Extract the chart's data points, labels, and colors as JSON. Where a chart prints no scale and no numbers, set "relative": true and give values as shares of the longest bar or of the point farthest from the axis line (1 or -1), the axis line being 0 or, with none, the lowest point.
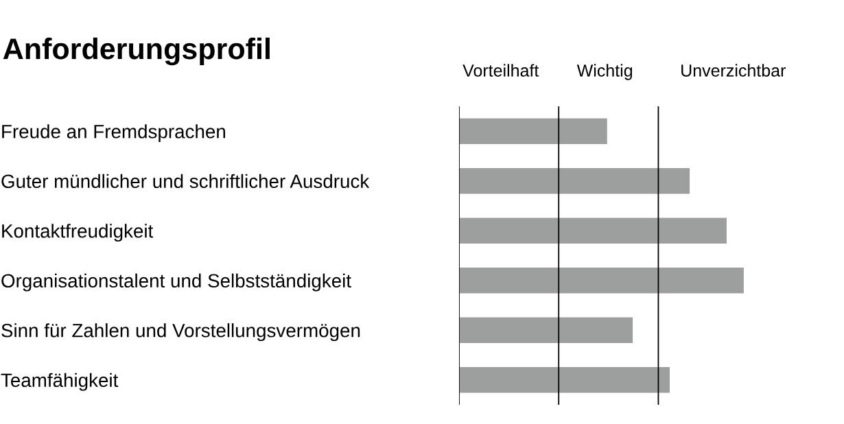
{
  "chart_data": {
    "type": "bar",
    "orientation": "horizontal",
    "relative": true,
    "title": "Anforderungsprofil",
    "categories": [
      "Freude an Fremdsprachen",
      "Guter mündlicher und schriftlicher Ausdruck",
      "Kontaktfreudigkeit",
      "Organisationstalent und Selbstständigkeit",
      "Sinn für Zahlen und Vorstellungsvermögen",
      "Teamfähigkeit"
    ],
    "values": [
      0.52,
      0.81,
      0.94,
      1,
      0.61,
      0.74
    ],
    "color": "#9d9e9e",
    "annotations": [
      "Vorteilhaft",
      "Wichtig",
      "Unverzichtbar"
    ],
    "ref_lines": [
      {
        "axis": "x",
        "value": 0,
        "color": "#000000"
      },
      {
        "axis": "x",
        "value": 0.35,
        "color": "#000000"
      },
      {
        "axis": "x",
        "value": 0.7,
        "color": "#000000"
      }
    ]
  }
}
